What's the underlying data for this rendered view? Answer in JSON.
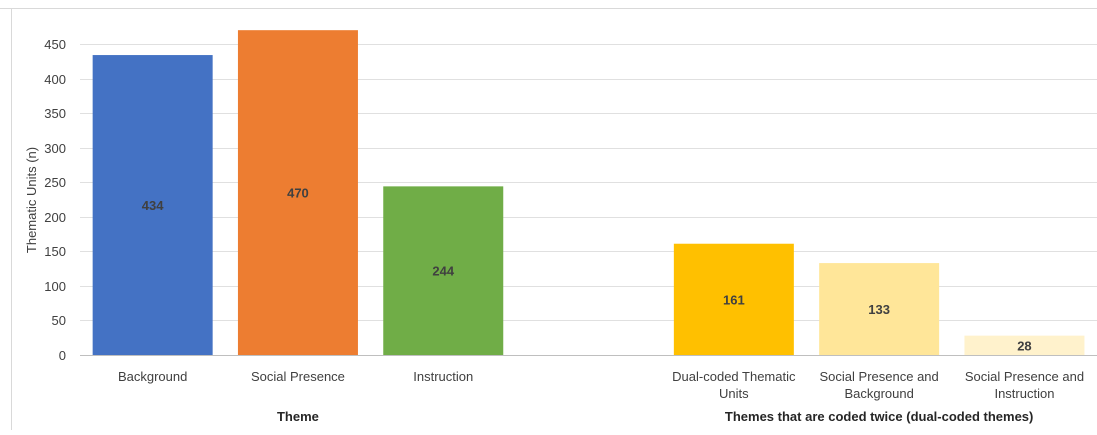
{
  "chart_data": {
    "type": "bar",
    "title": "",
    "ylabel": "Thematic Units (n)",
    "ylim": [
      0,
      450
    ],
    "yticks": [
      0,
      50,
      100,
      150,
      200,
      250,
      300,
      350,
      400,
      450
    ],
    "grid": true,
    "legend": "none",
    "categories": [
      "Background",
      "Social Presence",
      "Instruction",
      "",
      "Dual-coded Thematic Units",
      "Social Presence and Background",
      "Social Presence and Instruction"
    ],
    "category_lines": [
      [
        "Background"
      ],
      [
        "Social Presence"
      ],
      [
        "Instruction"
      ],
      [],
      [
        "Dual-coded Thematic",
        "Units"
      ],
      [
        "Social Presence and",
        "Background"
      ],
      [
        "Social Presence and",
        "Instruction"
      ]
    ],
    "values": [
      434,
      470,
      244,
      null,
      161,
      133,
      28
    ],
    "data_labels": [
      "434",
      "470",
      "244",
      "",
      "161",
      "133",
      "28"
    ],
    "bar_colors": [
      "#4472C4",
      "#ED7D31",
      "#70AD47",
      "",
      "#FFC000",
      "#FFE699",
      "#FFF2CC"
    ],
    "groups": [
      {
        "label": "Theme",
        "categories": [
          0,
          1,
          2
        ]
      },
      {
        "label": "Themes that are coded twice (dual-coded themes)",
        "categories": [
          4,
          5,
          6
        ]
      }
    ]
  }
}
